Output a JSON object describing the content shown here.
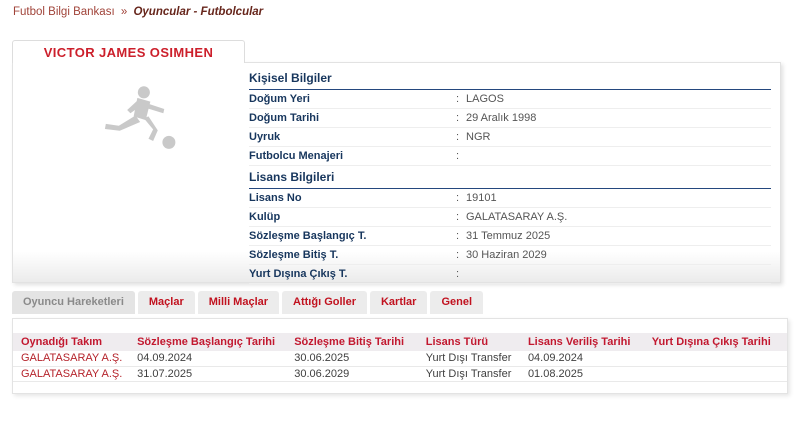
{
  "breadcrumb": {
    "section": "Futbol Bilgi Bankası",
    "separator": "»",
    "page": "Oyuncular - Futbolcular"
  },
  "player": {
    "name": "VICTOR JAMES OSIMHEN",
    "photo_icon": "player-kicking-ball-silhouette-icon"
  },
  "colon_separator": ":",
  "personal_info": {
    "title": "Kişisel Bilgiler",
    "rows": [
      {
        "label": "Doğum Yeri",
        "value": "LAGOS"
      },
      {
        "label": "Doğum Tarihi",
        "value": "29 Aralık 1998"
      },
      {
        "label": "Uyruk",
        "value": "NGR"
      },
      {
        "label": "Futbolcu Menajeri",
        "value": ""
      }
    ]
  },
  "license_info": {
    "title": "Lisans Bilgileri",
    "rows": [
      {
        "label": "Lisans No",
        "value": "19101"
      },
      {
        "label": "Kulüp",
        "value": "GALATASARAY A.Ş."
      },
      {
        "label": "Sözleşme Başlangıç T.",
        "value": "31 Temmuz 2025"
      },
      {
        "label": "Sözleşme Bitiş T.",
        "value": "30 Haziran 2029"
      },
      {
        "label": "Yurt Dışına Çıkış T.",
        "value": ""
      }
    ]
  },
  "tabs": [
    {
      "label": "Oyuncu Hareketleri",
      "active": true
    },
    {
      "label": "Maçlar",
      "active": false
    },
    {
      "label": "Milli Maçlar",
      "active": false
    },
    {
      "label": "Attığı Goller",
      "active": false
    },
    {
      "label": "Kartlar",
      "active": false
    },
    {
      "label": "Genel",
      "active": false
    }
  ],
  "movements_table": {
    "columns": [
      "Oynadığı Takım",
      "Sözleşme Başlangıç Tarihi",
      "Sözleşme Bitiş Tarihi",
      "Lisans Türü",
      "Lisans Veriliş Tarihi",
      "Yurt Dışına Çıkış Tarihi"
    ],
    "rows": [
      [
        "GALATASARAY A.Ş.",
        "04.09.2024",
        "30.06.2025",
        "Yurt Dışı Transfer",
        "04.09.2024",
        ""
      ],
      [
        "GALATASARAY A.Ş.",
        "31.07.2025",
        "30.06.2029",
        "Yurt Dışı Transfer",
        "01.08.2025",
        ""
      ]
    ]
  },
  "colors": {
    "accent_red": "#c2182f",
    "navy": "#17365d",
    "breadcrumb_red": "#a04339",
    "silhouette_gray": "#c9c9c9",
    "table_header_bg": "#efecef"
  }
}
